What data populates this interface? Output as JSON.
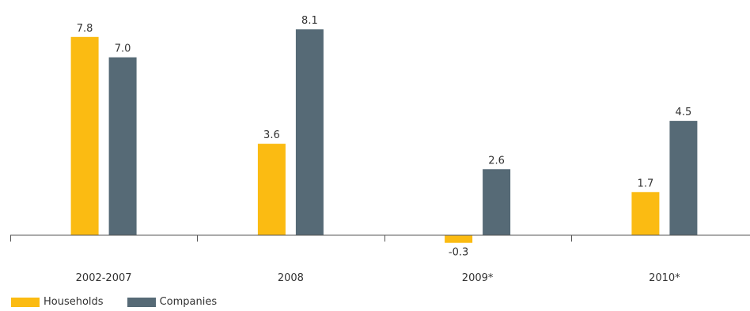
{
  "chart_data": {
    "type": "bar",
    "categories": [
      "2002-2007",
      "2008",
      "2009*",
      "2010*"
    ],
    "series": [
      {
        "name": "Households",
        "values": [
          7.8,
          3.6,
          -0.3,
          1.7
        ],
        "labels": [
          "7.8",
          "3.6",
          "-0.3",
          "1.7"
        ],
        "color": "#fbbb12"
      },
      {
        "name": "Companies",
        "values": [
          7.0,
          8.1,
          2.6,
          4.5
        ],
        "labels": [
          "7.0",
          "8.1",
          "2.6",
          "4.5"
        ],
        "color": "#566a76"
      }
    ],
    "title": "",
    "xlabel": "",
    "ylabel": "",
    "ylim": [
      -0.5,
      8.5
    ],
    "grid": false,
    "legend_position": "bottom-left"
  }
}
